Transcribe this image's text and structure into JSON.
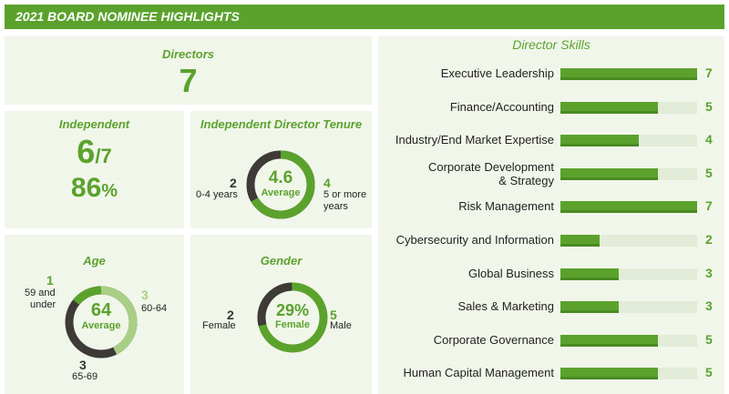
{
  "header": {
    "title": "2021 BOARD NOMINEE HIGHLIGHTS"
  },
  "directors": {
    "title": "Directors",
    "value": "7"
  },
  "independent": {
    "title": "Independent",
    "ratio_num": "6",
    "ratio_den": "/7",
    "pct_num": "86",
    "pct_sym": "%"
  },
  "tenure": {
    "title": "Independent Director Tenure",
    "center_value": "4.6",
    "center_label": "Average",
    "left_count": "2",
    "left_label": "0-4 years",
    "right_count": "4",
    "right_label_1": "5 or more",
    "right_label_2": "years",
    "colors": {
      "green": "#5ba22d",
      "dark": "#3d3a38"
    }
  },
  "age": {
    "title": "Age",
    "center_value": "64",
    "center_label": "Average",
    "g1_count": "1",
    "g1_label_1": "59 and",
    "g1_label_2": "under",
    "g2_count": "3",
    "g2_label": "60-64",
    "g3_count": "3",
    "g3_label": "65-69",
    "colors": {
      "green": "#5ba22d",
      "light": "#a9cf86",
      "dark": "#3d3a38"
    }
  },
  "gender": {
    "title": "Gender",
    "center_value": "29%",
    "center_label": "Female",
    "female_count": "2",
    "female_label": "Female",
    "male_count": "5",
    "male_label": "Male",
    "colors": {
      "green": "#5ba22d",
      "dark": "#3d3a38"
    }
  },
  "skills_panel": {
    "title": "Director Skills"
  },
  "chart_data": {
    "type": "bar",
    "orientation": "horizontal",
    "title": "Director Skills",
    "xlim": [
      0,
      7
    ],
    "series": [
      {
        "categories": [
          "Executive Leadership",
          "Finance/Accounting",
          "Industry/End Market Expertise",
          "Corporate Development & Strategy",
          "Risk Management",
          "Cybersecurity and Information",
          "Global Business",
          "Sales & Marketing",
          "Corporate Governance",
          "Human Capital Management"
        ],
        "values": [
          7,
          5,
          4,
          5,
          7,
          2,
          3,
          3,
          5,
          5
        ]
      }
    ],
    "labels_multiline": {
      "3": [
        "Corporate Development",
        "& Strategy"
      ]
    },
    "colors": {
      "bar": "#5ba22d",
      "track": "#e2ecd8"
    }
  }
}
